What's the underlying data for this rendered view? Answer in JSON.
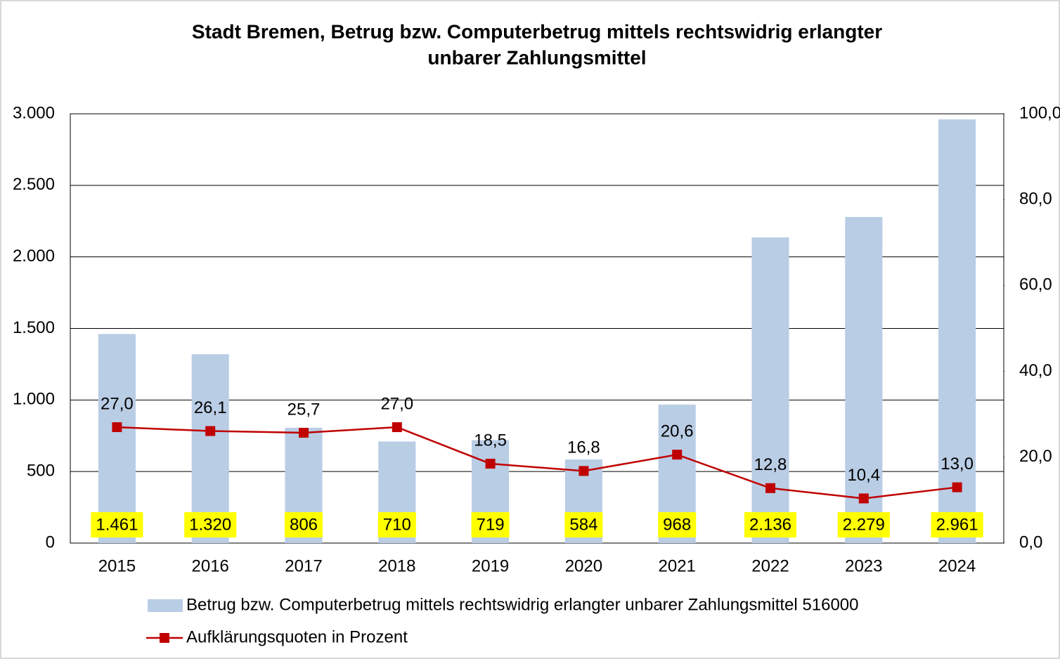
{
  "chart_data": {
    "type": "bar+line",
    "title": [
      "Stadt Bremen, Betrug bzw. Computerbetrug mittels rechtswidrig erlangter",
      "unbarer Zahlungsmittel"
    ],
    "categories": [
      "2015",
      "2016",
      "2017",
      "2018",
      "2019",
      "2020",
      "2021",
      "2022",
      "2023",
      "2024"
    ],
    "series": [
      {
        "name": "Betrug bzw. Computerbetrug mittels rechtswidrig erlangter unbarer Zahlungsmittel 516000",
        "type": "bar",
        "color": "#b9cde5",
        "values": [
          1461,
          1320,
          806,
          710,
          719,
          584,
          968,
          2136,
          2279,
          2961
        ],
        "value_labels": [
          "1.461",
          "1.320",
          "806",
          "710",
          "719",
          "584",
          "968",
          "2.136",
          "2.279",
          "2.961"
        ]
      },
      {
        "name": "Aufklärungsquoten in Prozent",
        "type": "line",
        "axis": "y2",
        "color": "#c00000",
        "values": [
          27.0,
          26.1,
          25.7,
          27.0,
          18.5,
          16.8,
          20.6,
          12.8,
          10.4,
          13.0
        ],
        "value_labels": [
          "27,0",
          "26,1",
          "25,7",
          "27,0",
          "18,5",
          "16,8",
          "20,6",
          "12,8",
          "10,4",
          "13,0"
        ]
      }
    ],
    "ylim": [
      0,
      3000
    ],
    "yticks": [
      0,
      500,
      {
        "value": 1000,
        "label": "1.000"
      },
      {
        "value": 1500,
        "label": "1.500"
      },
      {
        "value": 2000,
        "label": "2.000"
      },
      {
        "value": 2500,
        "label": "2.500"
      },
      {
        "value": 3000,
        "label": "3.000"
      }
    ],
    "y2lim": [
      0,
      100
    ],
    "y2ticks": [
      {
        "value": 0,
        "label": "0,0"
      },
      {
        "value": 20,
        "label": "20,0"
      },
      {
        "value": 40,
        "label": "40,0"
      },
      {
        "value": 60,
        "label": "60,0"
      },
      {
        "value": 80,
        "label": "80,0"
      },
      {
        "value": 100,
        "label": "100,0"
      }
    ],
    "grid": true,
    "legend": "bottom",
    "value_label_highlight": "#ffff00"
  }
}
